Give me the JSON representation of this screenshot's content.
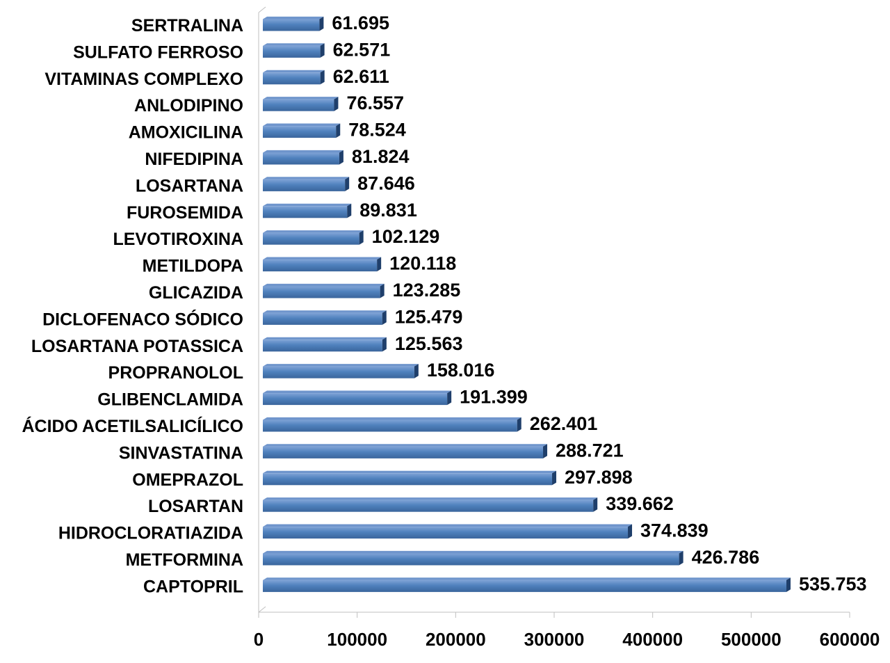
{
  "chart_data": {
    "type": "bar",
    "orientation": "horizontal",
    "title": "",
    "xlabel": "",
    "ylabel": "",
    "xlim": [
      0,
      600000
    ],
    "x_ticks": [
      0,
      100000,
      200000,
      300000,
      400000,
      500000,
      600000
    ],
    "x_tick_labels": [
      "0",
      "100000",
      "200000",
      "300000",
      "400000",
      "500000",
      "600000"
    ],
    "grid": false,
    "legend": "none",
    "bar_color": "#4F81BD",
    "bar_style": "3d",
    "categories": [
      "SERTRALINA",
      "SULFATO FERROSO",
      "VITAMINAS COMPLEXO",
      "ANLODIPINO",
      "AMOXICILINA",
      "NIFEDIPINA",
      "LOSARTANA",
      "FUROSEMIDA",
      "LEVOTIROXINA",
      "METILDOPA",
      "GLICAZIDA",
      "DICLOFENACO SÓDICO",
      "LOSARTANA POTASSICA",
      "PROPRANOLOL",
      "GLIBENCLAMIDA",
      "ÁCIDO ACETILSALICÍLICO",
      "SINVASTATINA",
      "OMEPRAZOL",
      "LOSARTAN",
      "HIDROCLORATIAZIDA",
      "METFORMINA",
      "CAPTOPRIL"
    ],
    "values": [
      61695,
      62571,
      62611,
      76557,
      78524,
      81824,
      87646,
      89831,
      102129,
      120118,
      123285,
      125479,
      125563,
      158016,
      191399,
      262401,
      288721,
      297898,
      339662,
      374839,
      426786,
      535753
    ],
    "data_labels": [
      "61.695",
      "62.571",
      "62.611",
      "76.557",
      "78.524",
      "81.824",
      "87.646",
      "89.831",
      "102.129",
      "120.118",
      "123.285",
      "125.479",
      "125.563",
      "158.016",
      "191.399",
      "262.401",
      "288.721",
      "297.898",
      "339.662",
      "374.839",
      "426.786",
      "535.753"
    ]
  }
}
